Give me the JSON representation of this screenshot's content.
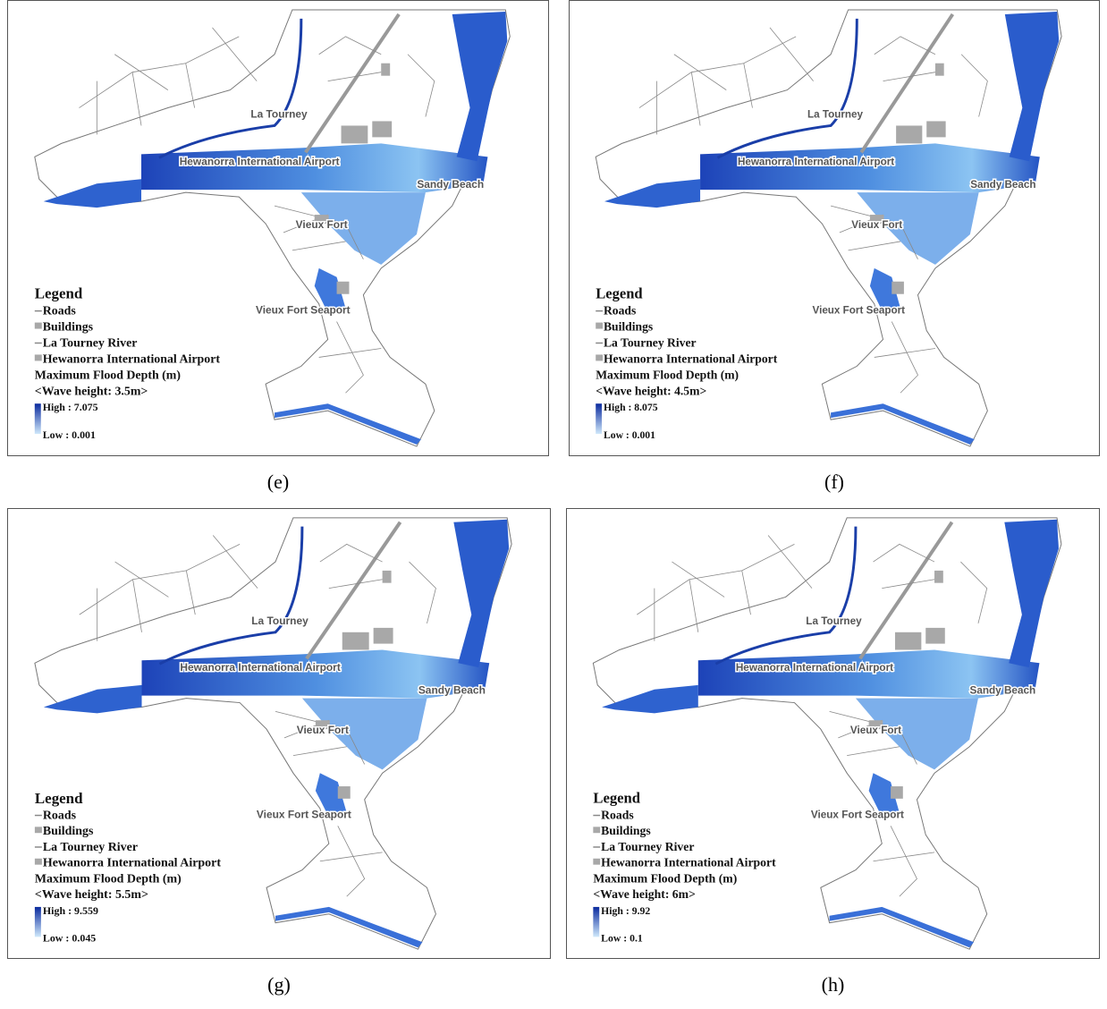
{
  "panels": [
    {
      "caption": "(e)",
      "places": [
        "La Tourney",
        "Hewanorra International Airport",
        "Sandy Beach",
        "Vieux Fort",
        "Vieux Fort Seaport"
      ],
      "legend": {
        "title": "Legend",
        "items": [
          "Roads",
          "Buildings",
          "La Tourney River",
          "Hewanorra International Airport"
        ],
        "flood_title": "Maximum Flood Depth (m)",
        "wave_height": "<Wave height: 3.5m>",
        "high": "High : 7.075",
        "low": "Low : 0.001"
      }
    },
    {
      "caption": "(f)",
      "places": [
        "La Tourney",
        "Hewanorra International Airport",
        "Sandy Beach",
        "Vieux Fort",
        "Vieux Fort Seaport"
      ],
      "legend": {
        "title": "Legend",
        "items": [
          "Roads",
          "Buildings",
          "La Tourney River",
          "Hewanorra International Airport"
        ],
        "flood_title": "Maximum Flood Depth (m)",
        "wave_height": "<Wave height: 4.5m>",
        "high": "High : 8.075",
        "low": "Low : 0.001"
      }
    },
    {
      "caption": "(g)",
      "places": [
        "La Tourney",
        "Hewanorra International Airport",
        "Sandy Beach",
        "Vieux Fort",
        "Vieux Fort Seaport"
      ],
      "legend": {
        "title": "Legend",
        "items": [
          "Roads",
          "Buildings",
          "La Tourney River",
          "Hewanorra International Airport"
        ],
        "flood_title": "Maximum Flood Depth (m)",
        "wave_height": "<Wave height: 5.5m>",
        "high": "High : 9.559",
        "low": "Low : 0.045"
      }
    },
    {
      "caption": "(h)",
      "places": [
        "La Tourney",
        "Hewanorra International Airport",
        "Sandy Beach",
        "Vieux Fort",
        "Vieux Fort Seaport"
      ],
      "legend": {
        "title": "Legend",
        "items": [
          "Roads",
          "Buildings",
          "La Tourney River",
          "Hewanorra International Airport"
        ],
        "flood_title": "Maximum Flood Depth (m)",
        "wave_height": "<Wave height: 6m>",
        "high": "High : 9.92",
        "low": "Low : 0.1"
      }
    }
  ]
}
